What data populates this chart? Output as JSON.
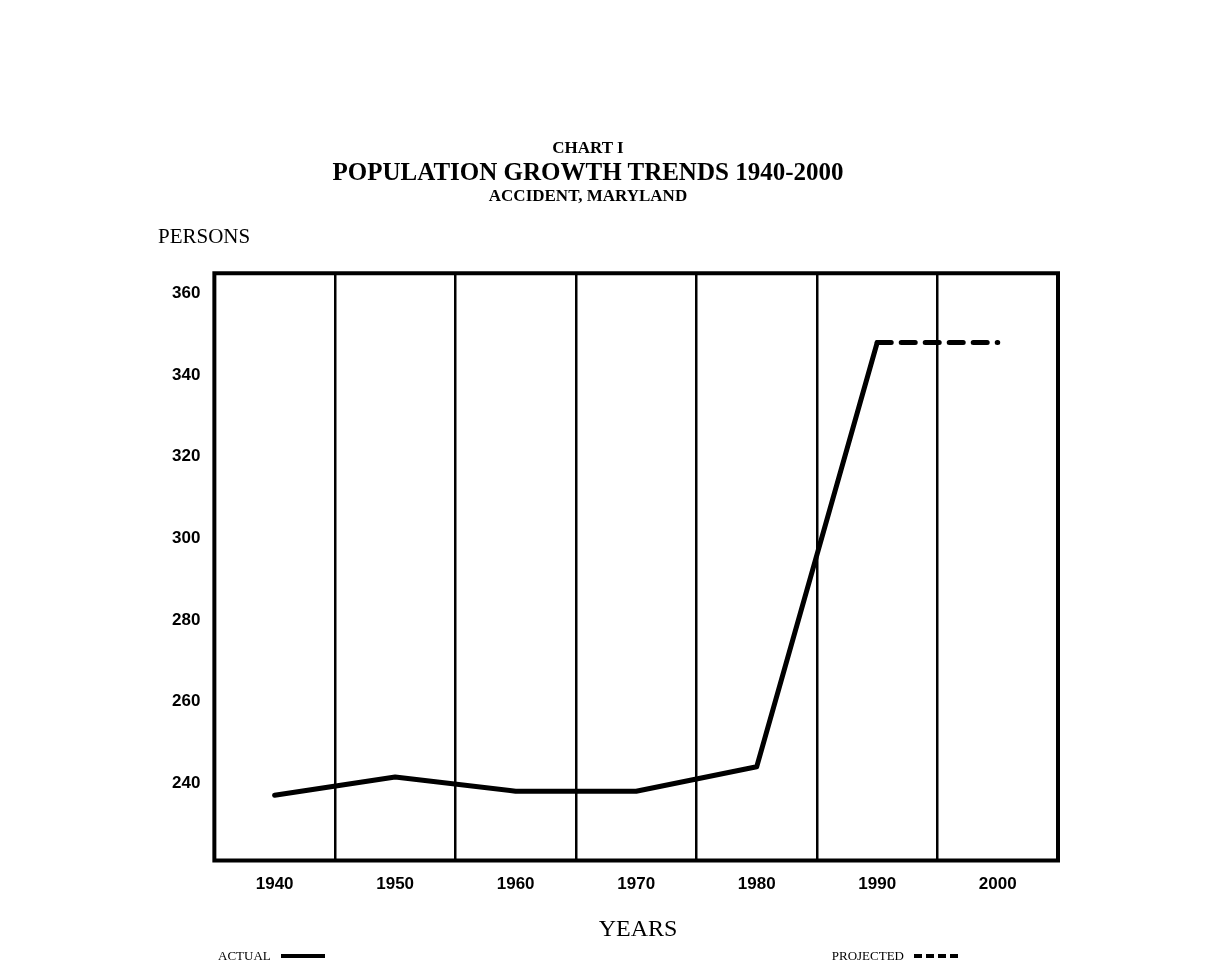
{
  "chart_data": {
    "type": "line",
    "title": "POPULATION GROWTH TRENDS 1940-2000",
    "subtitle": "ACCIDENT, MARYLAND",
    "annotations": [
      "CHART I"
    ],
    "ylabel": "PERSONS",
    "xlabel": "YEARS",
    "categories": [
      "1940",
      "1950",
      "1960",
      "1970",
      "1980",
      "1990",
      "2000"
    ],
    "series": [
      {
        "name": "ACTUAL",
        "color": "#000000",
        "values": [
          237,
          241.5,
          238,
          238,
          244,
          348,
          null
        ],
        "line_style": "solid"
      },
      {
        "name": "PROJECTED",
        "color": "#000000",
        "values": [
          null,
          null,
          null,
          null,
          null,
          348,
          348
        ],
        "line_style": "dashed"
      }
    ],
    "ylim": [
      221,
      365
    ],
    "yticks": [
      240,
      260,
      280,
      300,
      320,
      340,
      360
    ],
    "grid": "x",
    "legend": "bottom",
    "marker": "none"
  }
}
